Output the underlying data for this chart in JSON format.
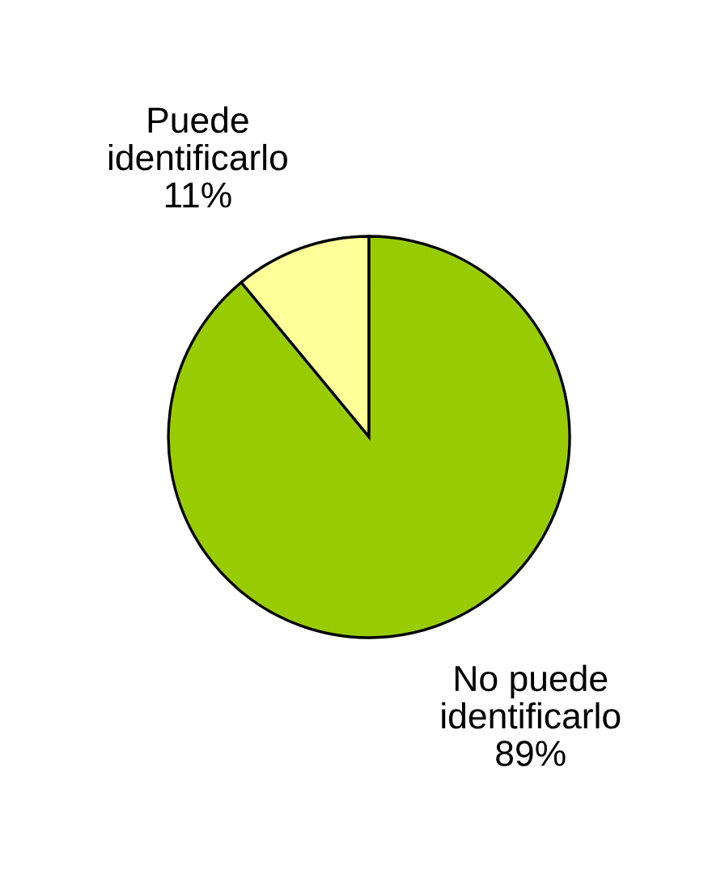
{
  "chart_data": {
    "type": "pie",
    "categories": [
      "Puede\nidentificarlo",
      "No puede\nidentificarlo"
    ],
    "values": [
      11,
      89
    ],
    "colors": [
      "#ffff99",
      "#99cc00"
    ],
    "value_labels": [
      "11%",
      "89%"
    ]
  }
}
